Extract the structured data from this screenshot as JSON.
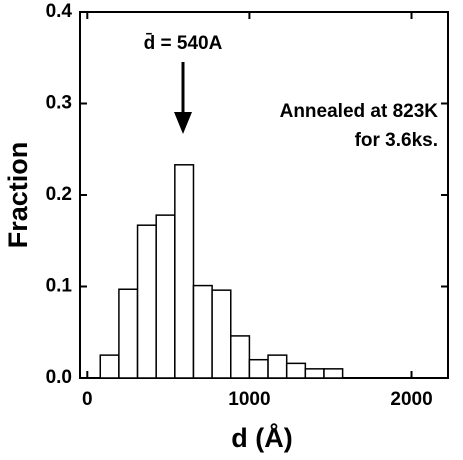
{
  "chart_data": {
    "type": "histogram",
    "xlabel": "d (Å)",
    "ylabel": "Fraction",
    "annotations": [
      "d̄ = 540A",
      "Annealed at 823K",
      "for 3.6ks."
    ],
    "bins": [
      80,
      195,
      310,
      425,
      540,
      655,
      770,
      885,
      1000,
      1115,
      1230,
      1345,
      1460,
      1575
    ],
    "values": [
      0.025,
      0.097,
      0.167,
      0.178,
      0.233,
      0.101,
      0.096,
      0.046,
      0.02,
      0.025,
      0.016,
      0.01,
      0.01
    ],
    "color": "#ffffff",
    "edgecolor": "#000000",
    "xlim": [
      -45,
      2225
    ],
    "ylim": [
      0,
      0.4
    ],
    "xticks": [
      0,
      1000,
      2000
    ],
    "yticks": [
      {
        "value": 0,
        "label": "0.0"
      },
      0.1,
      0.2,
      0.3,
      0.4
    ]
  }
}
